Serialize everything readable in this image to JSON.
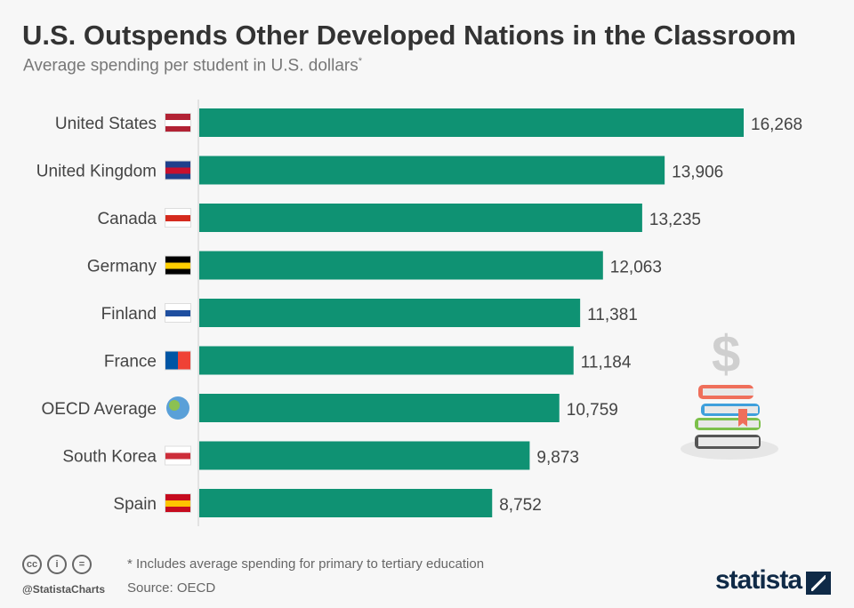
{
  "header": {
    "title": "U.S. Outspends Other Developed Nations in the Classroom",
    "subtitle": "Average spending per student in U.S. dollars",
    "subtitle_mark": "*"
  },
  "chart_data": {
    "type": "bar",
    "orientation": "horizontal",
    "title": "U.S. Outspends Other Developed Nations in the Classroom",
    "ylabel": "",
    "xlabel": "Average spending per student in U.S. dollars",
    "categories": [
      "United States",
      "United Kingdom",
      "Canada",
      "Germany",
      "Finland",
      "France",
      "OECD Average",
      "South Korea",
      "Spain"
    ],
    "values": [
      16268,
      13906,
      13235,
      12063,
      11381,
      11184,
      10759,
      9873,
      8752
    ],
    "labels": [
      "16,268",
      "13,906",
      "13,235",
      "12,063",
      "11,381",
      "11,184",
      "10,759",
      "9,873",
      "8,752"
    ],
    "xlim": [
      0,
      16268
    ],
    "bar_color": "#0f9273",
    "grid": false
  },
  "footer": {
    "note": "* Includes average spending for primary to tertiary education",
    "source": "Source: OECD",
    "handle": "@StatistaCharts",
    "cc": [
      "cc",
      "i",
      "="
    ],
    "logo": "statista"
  }
}
